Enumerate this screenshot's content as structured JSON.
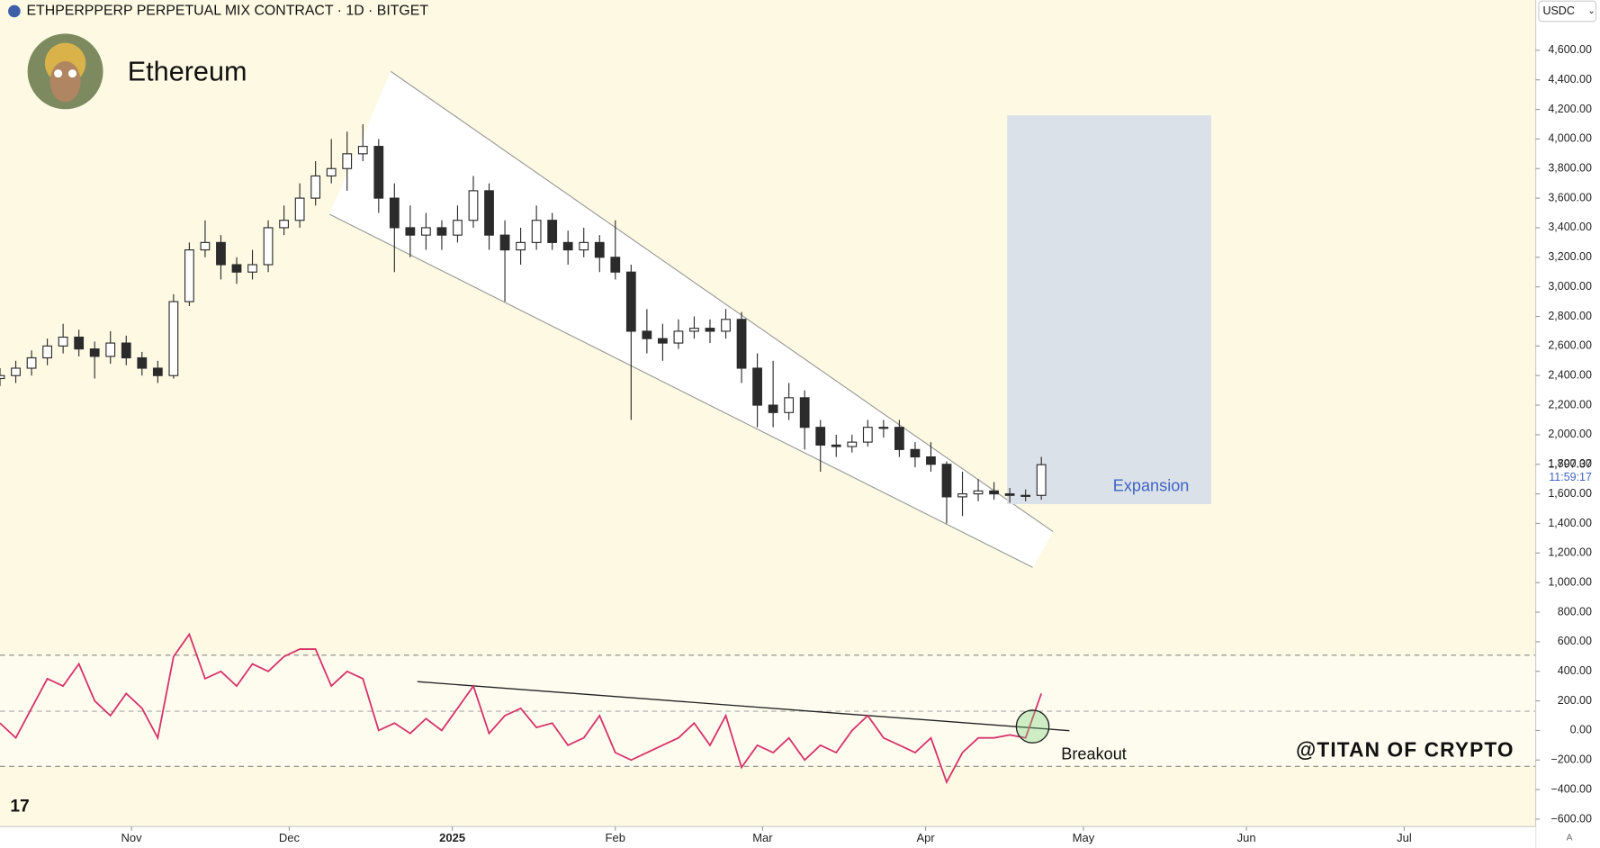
{
  "header": {
    "title": "ETHPERPPERP PERPETUAL MIX CONTRACT · 1D · BITGET",
    "author": "Ethereum",
    "currency": "USDC"
  },
  "chart_data": {
    "type": "candlestick",
    "x": [
      0,
      3,
      6,
      9,
      12,
      15,
      18,
      21,
      24,
      27,
      30,
      33,
      36,
      39,
      42,
      45,
      48,
      51,
      54,
      57,
      60,
      63,
      66,
      69,
      72,
      75,
      78,
      81,
      84,
      87,
      90,
      93,
      96,
      99,
      102,
      105,
      108,
      111,
      114,
      117,
      120,
      123,
      126,
      129,
      132,
      135,
      138,
      141,
      144,
      147,
      150,
      153,
      156,
      159,
      162,
      165,
      168,
      171,
      174,
      177,
      180,
      183,
      186,
      189,
      192,
      195,
      198
    ],
    "open": [
      2380,
      2400,
      2450,
      2520,
      2600,
      2660,
      2580,
      2530,
      2620,
      2520,
      2450,
      2400,
      2900,
      3250,
      3300,
      3150,
      3100,
      3150,
      3400,
      3450,
      3600,
      3750,
      3800,
      3900,
      3950,
      3600,
      3400,
      3350,
      3400,
      3350,
      3450,
      3650,
      3350,
      3250,
      3300,
      3450,
      3300,
      3250,
      3300,
      3200,
      3100,
      2700,
      2650,
      2620,
      2700,
      2720,
      2700,
      2780,
      2450,
      2200,
      2150,
      2250,
      2050,
      1930,
      1920,
      1950,
      2050,
      2050,
      1900,
      1850,
      1800,
      1580,
      1600,
      1620,
      1600,
      1590,
      1590
    ],
    "high": [
      2450,
      2500,
      2570,
      2650,
      2750,
      2710,
      2630,
      2700,
      2670,
      2560,
      2500,
      2950,
      3300,
      3450,
      3350,
      3200,
      3250,
      3450,
      3550,
      3700,
      3850,
      4000,
      4050,
      4100,
      4000,
      3700,
      3550,
      3500,
      3450,
      3550,
      3750,
      3700,
      3450,
      3400,
      3550,
      3500,
      3380,
      3400,
      3350,
      3450,
      3150,
      2850,
      2750,
      2780,
      2800,
      2780,
      2850,
      2830,
      2550,
      2500,
      2350,
      2300,
      2100,
      2000,
      2000,
      2100,
      2100,
      2100,
      1950,
      1950,
      1820,
      1750,
      1700,
      1680,
      1640,
      1630,
      1850
    ],
    "low": [
      2330,
      2350,
      2400,
      2470,
      2550,
      2530,
      2380,
      2480,
      2470,
      2400,
      2350,
      2380,
      2870,
      3200,
      3050,
      3020,
      3050,
      3100,
      3350,
      3400,
      3550,
      3700,
      3650,
      3850,
      3500,
      3100,
      3200,
      3250,
      3250,
      3300,
      3400,
      3250,
      2900,
      3150,
      3250,
      3250,
      3150,
      3200,
      3100,
      3050,
      2100,
      2550,
      2500,
      2580,
      2650,
      2620,
      2650,
      2350,
      2050,
      2050,
      2100,
      1900,
      1750,
      1850,
      1880,
      1920,
      1980,
      1850,
      1780,
      1750,
      1400,
      1450,
      1550,
      1560,
      1540,
      1550,
      1560
    ],
    "close": [
      2400,
      2450,
      2520,
      2600,
      2660,
      2580,
      2530,
      2620,
      2520,
      2450,
      2400,
      2900,
      3250,
      3300,
      3150,
      3100,
      3150,
      3400,
      3450,
      3600,
      3750,
      3800,
      3900,
      3950,
      3600,
      3400,
      3350,
      3400,
      3350,
      3450,
      3650,
      3350,
      3250,
      3300,
      3450,
      3300,
      3250,
      3300,
      3200,
      3100,
      2700,
      2650,
      2620,
      2700,
      2720,
      2700,
      2780,
      2450,
      2200,
      2150,
      2250,
      2050,
      1930,
      1920,
      1950,
      2050,
      2050,
      1900,
      1850,
      1800,
      1580,
      1600,
      1620,
      1600,
      1590,
      1590,
      1797.37
    ],
    "color_up": "#ffffff",
    "color_down": "#2b2b2b",
    "indicator": {
      "color": "#d6336c",
      "values": [
        50,
        -50,
        150,
        350,
        300,
        450,
        200,
        100,
        250,
        150,
        -50,
        500,
        650,
        350,
        400,
        300,
        450,
        400,
        500,
        550,
        550,
        300,
        400,
        350,
        0,
        50,
        -20,
        80,
        0,
        150,
        300,
        -20,
        100,
        150,
        20,
        50,
        -100,
        -50,
        100,
        -150,
        -200,
        -150,
        -100,
        -50,
        50,
        -100,
        100,
        -250,
        -100,
        -150,
        -50,
        -200,
        -100,
        -150,
        0,
        100,
        -50,
        -100,
        -150,
        -50,
        -350,
        -150,
        -50,
        -50,
        -30,
        -50,
        250
      ]
    },
    "xlim": [
      0,
      292
    ],
    "xticks": [
      {
        "value": 25,
        "label": "Nov"
      },
      {
        "value": 55,
        "label": "Dec"
      },
      {
        "value": 86,
        "label": "2025"
      },
      {
        "value": 117,
        "label": "Feb"
      },
      {
        "value": 145,
        "label": "Mar"
      },
      {
        "value": 176,
        "label": "Apr"
      },
      {
        "value": 206,
        "label": "May"
      },
      {
        "value": 237,
        "label": "Jun"
      },
      {
        "value": 267,
        "label": "Jul"
      }
    ],
    "ylim": [
      -650,
      4940
    ],
    "yticks": [
      {
        "value": -600,
        "label": "−600.00"
      },
      {
        "value": -400,
        "label": "−400.00"
      },
      {
        "value": -200,
        "label": "−200.00"
      },
      {
        "value": 0,
        "label": "0.00"
      },
      {
        "value": 200,
        "label": "200.00"
      },
      {
        "value": 400,
        "label": "400.00"
      },
      {
        "value": 600,
        "label": "600.00"
      },
      {
        "value": 800,
        "label": "800.00"
      },
      {
        "value": 1000,
        "label": "1,000.00"
      },
      {
        "value": 1200,
        "label": "1,200.00"
      },
      {
        "value": 1400,
        "label": "1,400.00"
      },
      {
        "value": 1600,
        "label": "1,600.00"
      },
      {
        "value": 1800,
        "label": "1,800.00"
      },
      {
        "value": 2000,
        "label": "2,000.00"
      },
      {
        "value": 2200,
        "label": "2,200.00"
      },
      {
        "value": 2400,
        "label": "2,400.00"
      },
      {
        "value": 2600,
        "label": "2,600.00"
      },
      {
        "value": 2800,
        "label": "2,800.00"
      },
      {
        "value": 3000,
        "label": "3,000.00"
      },
      {
        "value": 3200,
        "label": "3,200.00"
      },
      {
        "value": 3400,
        "label": "3,400.00"
      },
      {
        "value": 3600,
        "label": "3,600.00"
      },
      {
        "value": 3800,
        "label": "3,800.00"
      },
      {
        "value": 4000,
        "label": "4,000.00"
      },
      {
        "value": 4200,
        "label": "4,200.00"
      },
      {
        "value": 4400,
        "label": "4,400.00"
      },
      {
        "value": 4600,
        "label": "4,600.00"
      }
    ],
    "last_price": {
      "value": 1797.37,
      "label": "1,797.37"
    },
    "countdown": "11:59:17",
    "annotations": [
      "Expansion",
      "Breakout"
    ],
    "watermark": "@TITAN OF CRYPTO"
  }
}
